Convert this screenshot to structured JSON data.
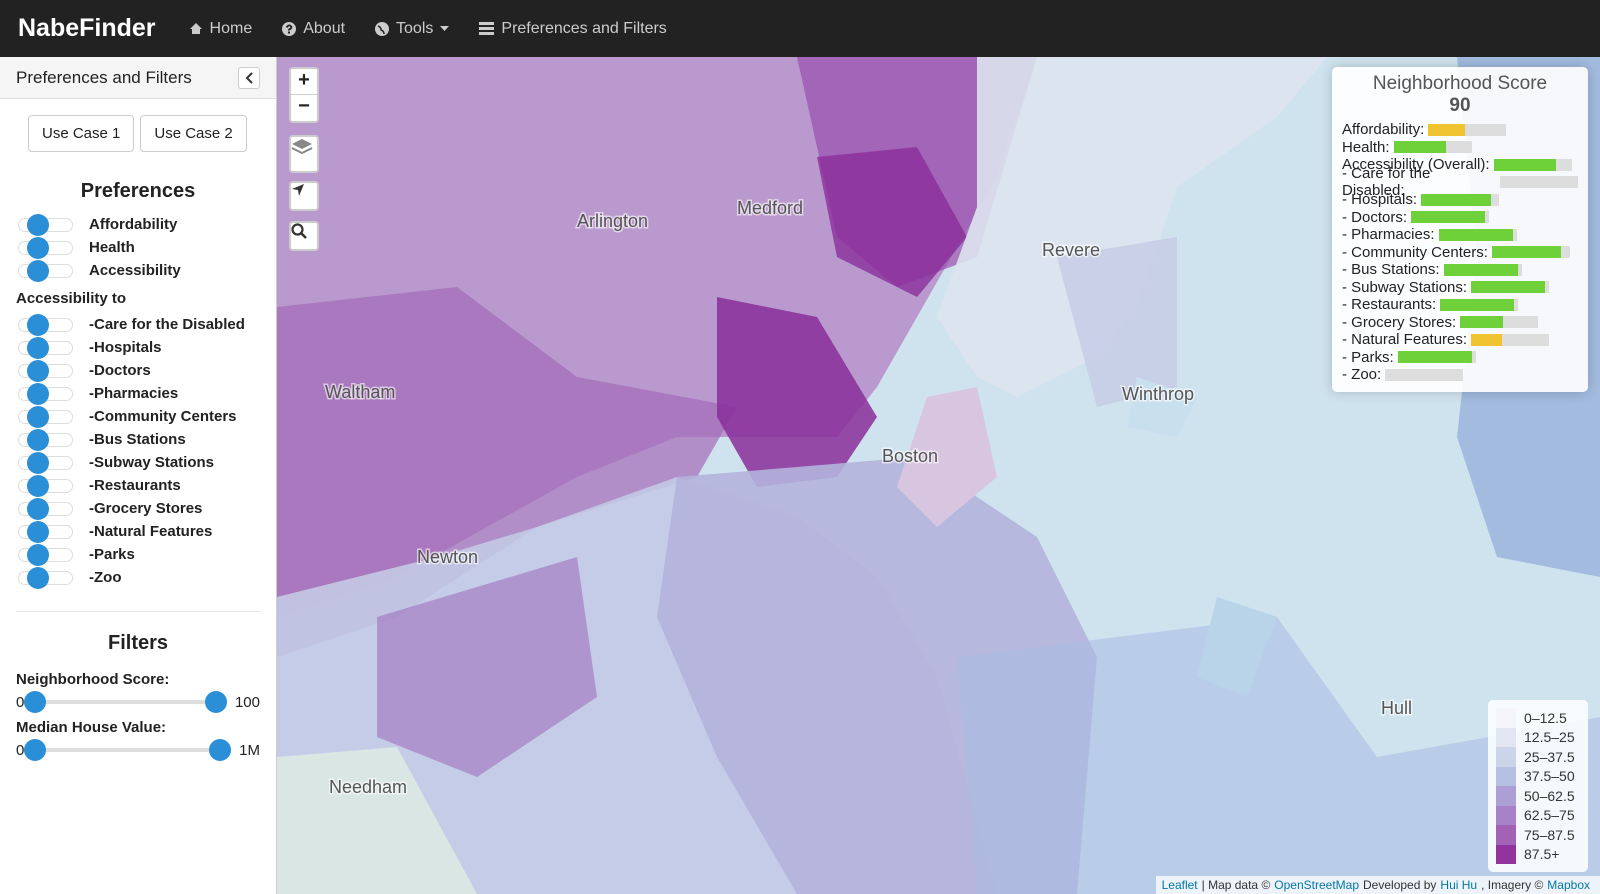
{
  "navbar": {
    "brand": "NabeFinder",
    "links": [
      "Home",
      "About",
      "Tools",
      "Preferences and Filters"
    ]
  },
  "sidebar": {
    "title": "Preferences and Filters",
    "use_cases": [
      "Use Case 1",
      "Use Case 2"
    ],
    "preferences_heading": "Preferences",
    "preferences": [
      "Affordability",
      "Health",
      "Accessibility"
    ],
    "accessibility_heading": "Accessibility to",
    "accessibility": [
      "-Care for the Disabled",
      "-Hospitals",
      "-Doctors",
      "-Pharmacies",
      "-Community Centers",
      "-Bus Stations",
      "-Subway Stations",
      "-Restaurants",
      "-Grocery Stores",
      "-Natural Features",
      "-Parks",
      "-Zoo"
    ],
    "filters_heading": "Filters",
    "filters": [
      {
        "label": "Neighborhood Score:",
        "min": "0",
        "max": "100"
      },
      {
        "label": "Median House Value:",
        "min": "0",
        "max": "1M"
      }
    ]
  },
  "map": {
    "zoom_in": "+",
    "zoom_out": "−",
    "places": [
      "Arlington",
      "Medford",
      "Revere",
      "Waltham",
      "Boston",
      "Winthrop",
      "Newton",
      "Needham",
      "Hull"
    ]
  },
  "score_panel": {
    "title": "Neighborhood Score",
    "score": 90,
    "items": [
      {
        "label": "Affordability:",
        "value": 47,
        "color": "#f0c330"
      },
      {
        "label": "Health:",
        "value": 67,
        "color": "#6fd13a"
      },
      {
        "label": "Accessibility (Overall):",
        "value": 80,
        "color": "#6fd13a"
      },
      {
        "label": "- Care for the Disabled:",
        "value": 0,
        "color": "#6fd13a"
      },
      {
        "label": "- Hospitals:",
        "value": 90,
        "color": "#6fd13a"
      },
      {
        "label": "- Doctors:",
        "value": 95,
        "color": "#6fd13a"
      },
      {
        "label": "- Pharmacies:",
        "value": 95,
        "color": "#6fd13a"
      },
      {
        "label": "- Community Centers:",
        "value": 88,
        "color": "#6fd13a"
      },
      {
        "label": "- Bus Stations:",
        "value": 95,
        "color": "#6fd13a"
      },
      {
        "label": "- Subway Stations:",
        "value": 95,
        "color": "#6fd13a"
      },
      {
        "label": "- Restaurants:",
        "value": 95,
        "color": "#6fd13a"
      },
      {
        "label": "- Grocery Stores:",
        "value": 55,
        "color": "#6fd13a"
      },
      {
        "label": "- Natural Features:",
        "value": 40,
        "color": "#f0c330"
      },
      {
        "label": "- Parks:",
        "value": 95,
        "color": "#6fd13a"
      },
      {
        "label": "- Zoo:",
        "value": 0,
        "color": "#6fd13a"
      }
    ]
  },
  "legend": {
    "items": [
      {
        "label": "0–12.5",
        "color": "#f4f4fa"
      },
      {
        "label": "12.5–25",
        "color": "#e2e6f2"
      },
      {
        "label": "25–37.5",
        "color": "#ccd4ea"
      },
      {
        "label": "37.5–50",
        "color": "#b6c0e2"
      },
      {
        "label": "50–62.5",
        "color": "#ab9fd6"
      },
      {
        "label": "62.5–75",
        "color": "#a882c8"
      },
      {
        "label": "75–87.5",
        "color": "#a262b6"
      },
      {
        "label": "87.5+",
        "color": "#93339c"
      }
    ]
  },
  "attribution": [
    "Leaflet",
    "| Map data ©",
    "OpenStreetMap",
    "Developed by",
    "Hui Hu",
    ", Imagery ©",
    "Mapbox"
  ]
}
